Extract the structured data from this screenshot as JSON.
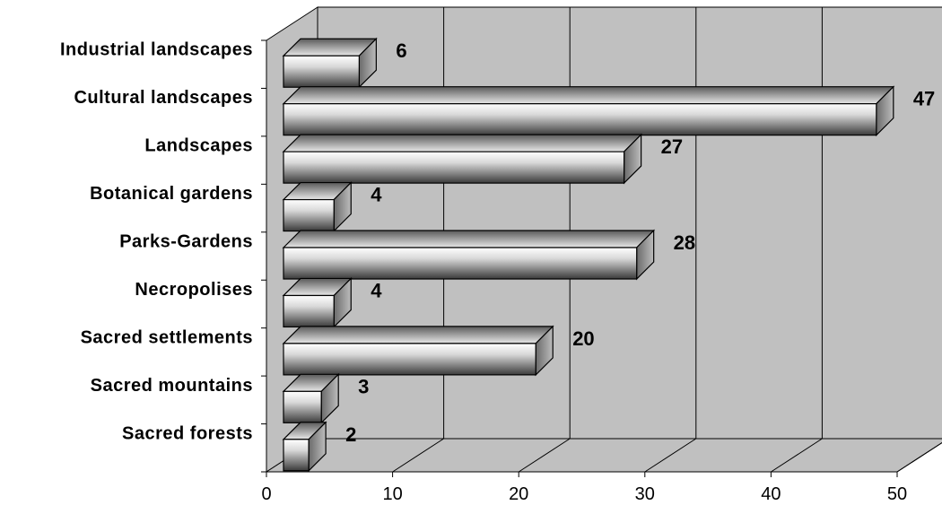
{
  "chart_data": {
    "type": "bar",
    "orientation": "horizontal",
    "style": "3d",
    "categories": [
      "Industrial landscapes",
      "Cultural landscapes",
      "Landscapes",
      "Botanical gardens",
      "Parks-Gardens",
      "Necropolises",
      "Sacred settlements",
      "Sacred mountains",
      "Sacred forests"
    ],
    "values": [
      6,
      47,
      27,
      4,
      28,
      4,
      20,
      3,
      2
    ],
    "data_labels": [
      "6",
      "47",
      "27",
      "4",
      "28",
      "4",
      "20",
      "3",
      "2"
    ],
    "xlim": [
      0,
      50
    ],
    "x_ticks": [
      "0",
      "10",
      "20",
      "30",
      "40",
      "50"
    ],
    "title": "",
    "xlabel": "",
    "ylabel": "",
    "grid": "vertical",
    "legend": "none",
    "colors": {
      "wall": "#c0c0c0",
      "floor": "#c0c0c0",
      "gridline": "#000000",
      "bar_light": "#ffffff",
      "bar_dark": "#333333"
    }
  }
}
